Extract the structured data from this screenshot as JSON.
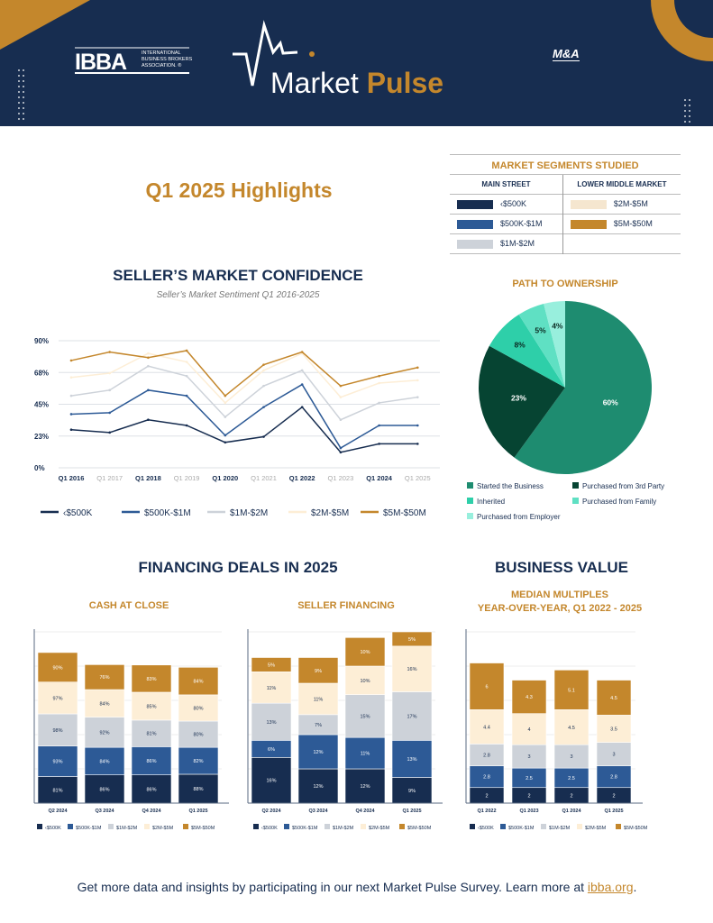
{
  "header": {
    "ibba_logo": "IBBA",
    "ibba_subtitle": [
      "INTERNATIONAL",
      "BUSINESS BROKERS",
      "ASSOCIATION. ®"
    ],
    "title_part1": "Market",
    "title_part2": "Pulse",
    "partner_logo": "M&A Source"
  },
  "colors": {
    "navy": "#172d50",
    "blue": "#2d5a96",
    "grey": "#cdd2d9",
    "cream": "#fdeed6",
    "gold": "#c4872c"
  },
  "highlights_title": "Q1 2025 Highlights",
  "segments": {
    "title": "MARKET SEGMENTS STUDIED",
    "main_street": "MAIN STREET",
    "lower_middle": "LOWER MIDDLE MARKET",
    "main_items": [
      {
        "label": "‹$500K",
        "color": "#172d50"
      },
      {
        "label": "$500K-$1M",
        "color": "#2d5a96"
      },
      {
        "label": "$1M-$2M",
        "color": "#cdd2d9"
      }
    ],
    "lower_items": [
      {
        "label": "$2M-$5M",
        "color": "#f5e6cf"
      },
      {
        "label": "$5M-$50M",
        "color": "#c4872c"
      }
    ]
  },
  "confidence": {
    "title": "SELLER’S MARKET CONFIDENCE",
    "subtitle": "Seller’s Market Sentiment Q1 2016-2025"
  },
  "pie_title": "PATH TO OWNERSHIP",
  "financing_title": "FINANCING DEALS IN 2025",
  "value_title": "BUSINESS VALUE",
  "cash_title": "CASH AT CLOSE",
  "seller_title": "SELLER FINANCING",
  "multiples_title": [
    "MEDIAN MULTIPLES",
    "YEAR-OVER-YEAR, Q1 2022 - 2025"
  ],
  "footer": {
    "text": "Get more data and insights by participating in our next Market Pulse Survey. Learn more at ",
    "link": "ibba.org",
    "end": "."
  },
  "chart_data": [
    {
      "type": "line",
      "title": "Seller’s Market Sentiment Q1 2016-2025",
      "categories": [
        "Q1 2016",
        "Q1 2017",
        "Q1 2018",
        "Q1 2019",
        "Q1 2020",
        "Q1 2021",
        "Q1 2022",
        "Q1 2023",
        "Q1 2024",
        "Q1 2025"
      ],
      "yticks": [
        "0%",
        "23%",
        "45%",
        "68%",
        "90%"
      ],
      "ylim": [
        0,
        90
      ],
      "grid": true,
      "legend": "bottom",
      "series": [
        {
          "name": "‹$500K",
          "color": "#172d50",
          "values": [
            27,
            25,
            34,
            30,
            18,
            22,
            43,
            11,
            17,
            17
          ]
        },
        {
          "name": "$500K-$1M",
          "color": "#2d5a96",
          "values": [
            38,
            39,
            55,
            51,
            23,
            43,
            59,
            14,
            30,
            30
          ]
        },
        {
          "name": "$1M-$2M",
          "color": "#cdd2d9",
          "values": [
            51,
            55,
            72,
            65,
            36,
            58,
            69,
            34,
            46,
            50
          ]
        },
        {
          "name": "$2M-$5M",
          "color": "#fdeed6",
          "values": [
            64,
            67,
            81,
            75,
            46,
            69,
            81,
            50,
            60,
            62
          ]
        },
        {
          "name": "$5M-$50M",
          "color": "#c4872c",
          "values": [
            76,
            82,
            78,
            83,
            51,
            73,
            82,
            58,
            65,
            71
          ]
        }
      ]
    },
    {
      "type": "pie",
      "title": "PATH TO OWNERSHIP",
      "legend": "bottom",
      "slices": [
        {
          "label": "Started the Business",
          "value": 60,
          "color": "#1e8c70",
          "text": "60%"
        },
        {
          "label": "Purchased from 3rd Party",
          "value": 23,
          "color": "#064432",
          "text": "23%"
        },
        {
          "label": "Inherited",
          "value": 8,
          "color": "#2ecfa9",
          "text": "8%"
        },
        {
          "label": "Purchased from Family",
          "value": 5,
          "color": "#5fe0c3",
          "text": "5%"
        },
        {
          "label": "Purchased from Employer",
          "value": 4,
          "color": "#98efdd",
          "text": "4%"
        }
      ]
    },
    {
      "type": "bar",
      "stacked": true,
      "title": "CASH AT CLOSE",
      "categories": [
        "Q2 2024",
        "Q3 2024",
        "Q4 2024",
        "Q1 2025"
      ],
      "suffix": "%",
      "legend": "bottom",
      "series": [
        {
          "name": "‹$500K",
          "values": [
            81,
            86,
            86,
            88
          ]
        },
        {
          "name": "$500K-$1M",
          "values": [
            93,
            84,
            86,
            82
          ]
        },
        {
          "name": "$1M-$2M",
          "values": [
            98,
            92,
            81,
            80
          ]
        },
        {
          "name": "$2M-$5M",
          "values": [
            97,
            84,
            85,
            80
          ]
        },
        {
          "name": "$5M-$50M",
          "values": [
            90,
            76,
            83,
            84
          ]
        }
      ]
    },
    {
      "type": "bar",
      "stacked": true,
      "title": "SELLER FINANCING",
      "categories": [
        "Q2 2024",
        "Q3 2024",
        "Q4 2024",
        "Q1 2025"
      ],
      "suffix": "%",
      "legend": "bottom",
      "series": [
        {
          "name": "‹$500K",
          "values": [
            16,
            12,
            12,
            9
          ]
        },
        {
          "name": "$500K-$1M",
          "values": [
            6,
            12,
            11,
            13
          ]
        },
        {
          "name": "$1M-$2M",
          "values": [
            13,
            7,
            15,
            17
          ]
        },
        {
          "name": "$2M-$5M",
          "values": [
            11,
            11,
            10,
            16
          ]
        },
        {
          "name": "$5M-$50M",
          "values": [
            5,
            9,
            10,
            5
          ]
        }
      ]
    },
    {
      "type": "bar",
      "stacked": true,
      "title": "MEDIAN MULTIPLES YEAR-OVER-YEAR, Q1 2022 - 2025",
      "categories": [
        "Q1 2022",
        "Q1 2023",
        "Q1 2024",
        "Q1 2025"
      ],
      "suffix": "",
      "legend": "bottom",
      "series": [
        {
          "name": "‹$500K",
          "values": [
            2,
            2,
            2,
            2
          ]
        },
        {
          "name": "$500K-$1M",
          "values": [
            2.8,
            2.5,
            2.5,
            2.8
          ]
        },
        {
          "name": "$1M-$2M",
          "values": [
            2.8,
            3,
            3,
            3
          ]
        },
        {
          "name": "$2M-$5M",
          "values": [
            4.4,
            4,
            4.5,
            3.5
          ]
        },
        {
          "name": "$5M-$50M",
          "values": [
            6,
            4.3,
            5.1,
            4.5
          ]
        }
      ]
    }
  ]
}
